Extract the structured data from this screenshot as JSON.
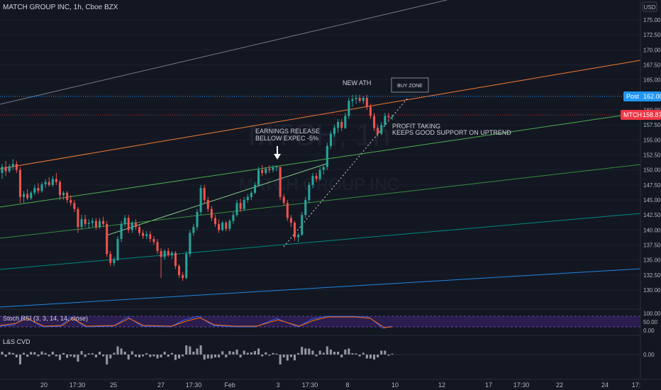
{
  "header": {
    "symbol_title": "MATCH GROUP INC, 1h, Cboe BZX"
  },
  "watermark": {
    "ticker": "MTCH, 1h",
    "name": "MATCH GROUP INC"
  },
  "currency": "USD",
  "price_badges": {
    "post": {
      "label": "Post",
      "value": "162.00",
      "color": "#2196f3"
    },
    "last": {
      "label": "MTCH",
      "value": "158.87",
      "color": "#f23645"
    }
  },
  "annotations": {
    "earnings": [
      "EARNINGS RELEASE",
      "BELLOW EXPEC -5%"
    ],
    "new_ath": "NEW ATH",
    "buy_zone": "BUY ZONE",
    "profit": [
      "PROFIT TAKING",
      "KEEPS GOOD SUPPORT ON UPTREND"
    ]
  },
  "indicators": {
    "stoch_label": "Stoch RSI (3, 3, 14, 14, close)",
    "cvd_label": "L&S CVD",
    "stoch_ticks": [
      "100.00",
      "50.00",
      "0.00"
    ],
    "cvd_tick": "0.00"
  },
  "x_axis": {
    "labels": [
      "20",
      "17:30",
      "25",
      "27",
      "17:30",
      "Feb",
      "3",
      "17:30",
      "8",
      "10",
      "12",
      "17",
      "17:30",
      "22",
      "24",
      "17:"
    ]
  },
  "colors": {
    "up": "#26a69a",
    "down": "#ef5350",
    "bg": "#131722"
  },
  "chart_data": {
    "type": "candlestick",
    "title": "MATCH GROUP INC, 1h, Cboe BZX",
    "ylim": [
      127.5,
      177.5
    ],
    "y_ticks": [
      130,
      132.5,
      135,
      137.5,
      140,
      142.5,
      145,
      147.5,
      150,
      152.5,
      155,
      157.5,
      160,
      162.5,
      165,
      167.5,
      170,
      172.5,
      175
    ],
    "candles": [
      {
        "o": 149.5,
        "h": 151.0,
        "l": 148.5,
        "c": 150.5
      },
      {
        "o": 150.5,
        "h": 151.5,
        "l": 149.0,
        "c": 149.8
      },
      {
        "o": 149.8,
        "h": 151.0,
        "l": 149.5,
        "c": 150.6
      },
      {
        "o": 150.6,
        "h": 151.8,
        "l": 150.0,
        "c": 151.0
      },
      {
        "o": 151.0,
        "h": 151.5,
        "l": 149.5,
        "c": 150.0
      },
      {
        "o": 150.0,
        "h": 150.5,
        "l": 144.5,
        "c": 145.5
      },
      {
        "o": 145.5,
        "h": 146.5,
        "l": 144.5,
        "c": 146.0
      },
      {
        "o": 146.0,
        "h": 146.8,
        "l": 145.0,
        "c": 145.3
      },
      {
        "o": 145.3,
        "h": 146.5,
        "l": 145.0,
        "c": 146.2
      },
      {
        "o": 146.2,
        "h": 147.5,
        "l": 145.8,
        "c": 147.0
      },
      {
        "o": 147.0,
        "h": 147.8,
        "l": 146.0,
        "c": 146.5
      },
      {
        "o": 146.5,
        "h": 148.0,
        "l": 146.2,
        "c": 147.6
      },
      {
        "o": 147.6,
        "h": 148.5,
        "l": 147.0,
        "c": 148.0
      },
      {
        "o": 148.0,
        "h": 148.8,
        "l": 147.2,
        "c": 147.5
      },
      {
        "o": 147.5,
        "h": 149.0,
        "l": 147.2,
        "c": 148.5
      },
      {
        "o": 148.5,
        "h": 149.5,
        "l": 147.5,
        "c": 148.0
      },
      {
        "o": 148.0,
        "h": 148.3,
        "l": 145.0,
        "c": 145.8
      },
      {
        "o": 145.8,
        "h": 146.5,
        "l": 145.0,
        "c": 146.2
      },
      {
        "o": 146.2,
        "h": 146.5,
        "l": 144.5,
        "c": 145.0
      },
      {
        "o": 145.0,
        "h": 145.8,
        "l": 144.0,
        "c": 144.5
      },
      {
        "o": 144.5,
        "h": 145.0,
        "l": 143.0,
        "c": 143.5
      },
      {
        "o": 143.5,
        "h": 143.8,
        "l": 139.5,
        "c": 140.5
      },
      {
        "o": 140.5,
        "h": 142.5,
        "l": 140.0,
        "c": 141.8
      },
      {
        "o": 141.8,
        "h": 142.5,
        "l": 140.5,
        "c": 141.0
      },
      {
        "o": 141.0,
        "h": 141.8,
        "l": 140.2,
        "c": 141.2
      },
      {
        "o": 141.2,
        "h": 142.0,
        "l": 140.5,
        "c": 141.5
      },
      {
        "o": 141.5,
        "h": 142.0,
        "l": 140.0,
        "c": 140.5
      },
      {
        "o": 140.5,
        "h": 142.0,
        "l": 140.2,
        "c": 141.5
      },
      {
        "o": 141.5,
        "h": 142.2,
        "l": 140.5,
        "c": 141.0
      },
      {
        "o": 141.0,
        "h": 141.5,
        "l": 135.5,
        "c": 136.0
      },
      {
        "o": 136.0,
        "h": 136.5,
        "l": 134.0,
        "c": 134.5
      },
      {
        "o": 134.5,
        "h": 135.5,
        "l": 134.0,
        "c": 135.0
      },
      {
        "o": 135.0,
        "h": 139.0,
        "l": 134.8,
        "c": 138.5
      },
      {
        "o": 138.5,
        "h": 141.5,
        "l": 138.0,
        "c": 141.0
      },
      {
        "o": 141.0,
        "h": 142.5,
        "l": 140.5,
        "c": 142.0
      },
      {
        "o": 142.0,
        "h": 142.5,
        "l": 139.5,
        "c": 140.0
      },
      {
        "o": 140.0,
        "h": 141.5,
        "l": 139.5,
        "c": 141.2
      },
      {
        "o": 141.2,
        "h": 141.8,
        "l": 140.0,
        "c": 140.5
      },
      {
        "o": 140.5,
        "h": 140.8,
        "l": 139.0,
        "c": 139.5
      },
      {
        "o": 139.5,
        "h": 140.0,
        "l": 138.5,
        "c": 139.0
      },
      {
        "o": 139.0,
        "h": 139.8,
        "l": 138.5,
        "c": 139.3
      },
      {
        "o": 139.3,
        "h": 139.8,
        "l": 138.0,
        "c": 138.5
      },
      {
        "o": 138.5,
        "h": 139.0,
        "l": 137.5,
        "c": 138.0
      },
      {
        "o": 138.0,
        "h": 138.5,
        "l": 136.0,
        "c": 136.5
      },
      {
        "o": 136.5,
        "h": 137.0,
        "l": 132.0,
        "c": 135.5
      },
      {
        "o": 135.5,
        "h": 136.8,
        "l": 135.0,
        "c": 136.5
      },
      {
        "o": 136.5,
        "h": 137.0,
        "l": 135.5,
        "c": 135.8
      },
      {
        "o": 135.8,
        "h": 136.5,
        "l": 135.2,
        "c": 136.2
      },
      {
        "o": 136.2,
        "h": 136.5,
        "l": 133.5,
        "c": 134.0
      },
      {
        "o": 134.0,
        "h": 134.3,
        "l": 132.0,
        "c": 132.5
      },
      {
        "o": 132.5,
        "h": 133.0,
        "l": 131.5,
        "c": 132.0
      },
      {
        "o": 132.0,
        "h": 136.5,
        "l": 131.8,
        "c": 136.0
      },
      {
        "o": 136.0,
        "h": 140.0,
        "l": 135.5,
        "c": 139.5
      },
      {
        "o": 139.5,
        "h": 141.0,
        "l": 139.0,
        "c": 140.5
      },
      {
        "o": 140.5,
        "h": 143.5,
        "l": 140.0,
        "c": 143.0
      },
      {
        "o": 143.0,
        "h": 147.5,
        "l": 142.5,
        "c": 147.0
      },
      {
        "o": 147.0,
        "h": 147.5,
        "l": 144.5,
        "c": 145.0
      },
      {
        "o": 145.0,
        "h": 145.5,
        "l": 143.0,
        "c": 143.5
      },
      {
        "o": 143.5,
        "h": 144.0,
        "l": 141.5,
        "c": 142.0
      },
      {
        "o": 142.0,
        "h": 142.5,
        "l": 140.5,
        "c": 141.0
      },
      {
        "o": 141.0,
        "h": 141.8,
        "l": 139.5,
        "c": 140.0
      },
      {
        "o": 140.0,
        "h": 141.5,
        "l": 139.8,
        "c": 141.2
      },
      {
        "o": 141.2,
        "h": 141.5,
        "l": 139.8,
        "c": 140.2
      },
      {
        "o": 140.2,
        "h": 141.8,
        "l": 139.8,
        "c": 141.5
      },
      {
        "o": 141.5,
        "h": 143.0,
        "l": 141.0,
        "c": 142.5
      },
      {
        "o": 142.5,
        "h": 145.0,
        "l": 142.2,
        "c": 144.5
      },
      {
        "o": 144.5,
        "h": 145.2,
        "l": 143.0,
        "c": 143.5
      },
      {
        "o": 143.5,
        "h": 145.5,
        "l": 143.2,
        "c": 145.0
      },
      {
        "o": 145.0,
        "h": 146.0,
        "l": 144.5,
        "c": 145.5
      },
      {
        "o": 145.5,
        "h": 146.5,
        "l": 145.0,
        "c": 146.2
      },
      {
        "o": 146.2,
        "h": 148.0,
        "l": 146.0,
        "c": 147.5
      },
      {
        "o": 147.5,
        "h": 150.5,
        "l": 147.2,
        "c": 150.0
      },
      {
        "o": 150.0,
        "h": 150.8,
        "l": 149.0,
        "c": 149.5
      },
      {
        "o": 149.5,
        "h": 150.5,
        "l": 149.2,
        "c": 150.2
      },
      {
        "o": 150.2,
        "h": 150.8,
        "l": 149.5,
        "c": 150.0
      },
      {
        "o": 150.0,
        "h": 150.8,
        "l": 149.6,
        "c": 150.4
      },
      {
        "o": 150.4,
        "h": 150.8,
        "l": 149.8,
        "c": 150.5
      },
      {
        "o": 150.5,
        "h": 150.5,
        "l": 145.0,
        "c": 145.5
      },
      {
        "o": 145.5,
        "h": 146.0,
        "l": 144.0,
        "c": 144.5
      },
      {
        "o": 144.5,
        "h": 145.0,
        "l": 141.5,
        "c": 142.0
      },
      {
        "o": 142.0,
        "h": 142.5,
        "l": 140.5,
        "c": 141.2
      },
      {
        "o": 141.2,
        "h": 141.5,
        "l": 138.2,
        "c": 138.8
      },
      {
        "o": 138.8,
        "h": 139.5,
        "l": 138.0,
        "c": 139.2
      },
      {
        "o": 139.2,
        "h": 143.0,
        "l": 139.0,
        "c": 142.5
      },
      {
        "o": 142.5,
        "h": 145.5,
        "l": 142.0,
        "c": 145.0
      },
      {
        "o": 145.0,
        "h": 148.0,
        "l": 144.5,
        "c": 147.5
      },
      {
        "o": 147.5,
        "h": 149.5,
        "l": 147.0,
        "c": 149.0
      },
      {
        "o": 149.0,
        "h": 149.5,
        "l": 148.0,
        "c": 148.5
      },
      {
        "o": 148.5,
        "h": 150.5,
        "l": 148.2,
        "c": 150.0
      },
      {
        "o": 150.0,
        "h": 151.0,
        "l": 149.2,
        "c": 150.5
      },
      {
        "o": 150.5,
        "h": 154.5,
        "l": 150.0,
        "c": 154.0
      },
      {
        "o": 154.0,
        "h": 156.5,
        "l": 153.5,
        "c": 156.0
      },
      {
        "o": 156.0,
        "h": 157.5,
        "l": 155.5,
        "c": 157.0
      },
      {
        "o": 157.0,
        "h": 158.5,
        "l": 156.2,
        "c": 158.0
      },
      {
        "o": 158.0,
        "h": 158.5,
        "l": 156.5,
        "c": 157.0
      },
      {
        "o": 157.0,
        "h": 159.5,
        "l": 156.8,
        "c": 159.0
      },
      {
        "o": 159.0,
        "h": 162.0,
        "l": 158.5,
        "c": 161.5
      },
      {
        "o": 161.5,
        "h": 162.5,
        "l": 160.5,
        "c": 161.8
      },
      {
        "o": 161.8,
        "h": 162.5,
        "l": 161.0,
        "c": 162.0
      },
      {
        "o": 162.0,
        "h": 162.5,
        "l": 161.2,
        "c": 161.5
      },
      {
        "o": 161.5,
        "h": 162.3,
        "l": 161.0,
        "c": 162.0
      },
      {
        "o": 162.0,
        "h": 162.5,
        "l": 160.0,
        "c": 160.5
      },
      {
        "o": 160.5,
        "h": 161.0,
        "l": 158.5,
        "c": 159.0
      },
      {
        "o": 159.0,
        "h": 159.5,
        "l": 156.5,
        "c": 157.0
      },
      {
        "o": 157.0,
        "h": 157.5,
        "l": 155.5,
        "c": 156.0
      },
      {
        "o": 156.0,
        "h": 158.0,
        "l": 155.8,
        "c": 157.5
      },
      {
        "o": 157.5,
        "h": 159.5,
        "l": 157.2,
        "c": 159.0
      },
      {
        "o": 159.0,
        "h": 159.5,
        "l": 158.2,
        "c": 158.8
      },
      {
        "o": 158.8,
        "h": 159.2,
        "l": 158.3,
        "c": 158.87
      }
    ]
  }
}
